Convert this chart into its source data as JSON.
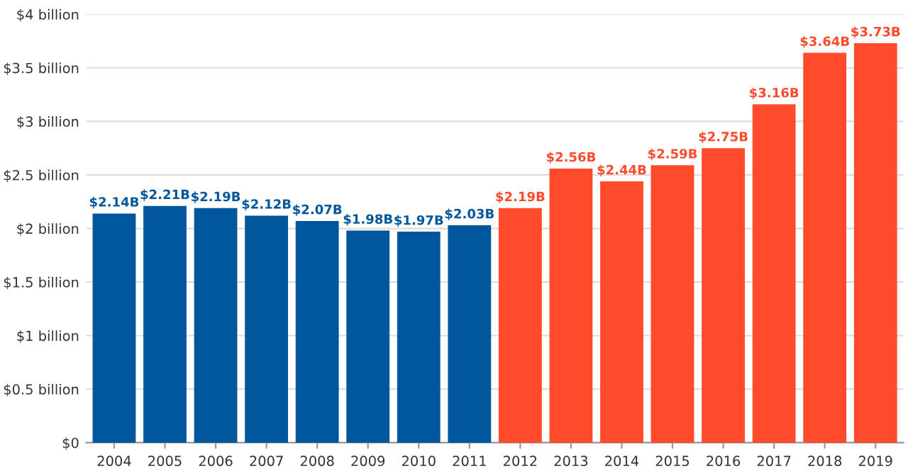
{
  "chart_data": {
    "type": "bar",
    "categories": [
      "2004",
      "2005",
      "2006",
      "2007",
      "2008",
      "2009",
      "2010",
      "2011",
      "2012",
      "2013",
      "2014",
      "2015",
      "2016",
      "2017",
      "2018",
      "2019"
    ],
    "values": [
      2.14,
      2.21,
      2.19,
      2.12,
      2.07,
      1.98,
      1.97,
      2.03,
      2.19,
      2.56,
      2.44,
      2.59,
      2.75,
      3.16,
      3.64,
      3.73
    ],
    "colors": [
      "#00579c",
      "#00579c",
      "#00579c",
      "#00579c",
      "#00579c",
      "#00579c",
      "#00579c",
      "#00579c",
      "#ff4a2b",
      "#ff4a2b",
      "#ff4a2b",
      "#ff4a2b",
      "#ff4a2b",
      "#ff4a2b",
      "#ff4a2b",
      "#ff4a2b"
    ],
    "value_labels": [
      "$2.14B",
      "$2.21B",
      "$2.19B",
      "$2.12B",
      "$2.07B",
      "$1.98B",
      "$1.97B",
      "$2.03B",
      "$2.19B",
      "$2.56B",
      "$2.44B",
      "$2.59B",
      "$2.75B",
      "$3.16B",
      "$3.64B",
      "$3.73B"
    ],
    "ylim": [
      0,
      4
    ],
    "yticks": [
      {
        "value": 0,
        "label": "$0"
      },
      {
        "value": 0.5,
        "label": "$0.5 billion"
      },
      {
        "value": 1,
        "label": "$1 billion"
      },
      {
        "value": 1.5,
        "label": "$1.5 billion"
      },
      {
        "value": 2,
        "label": "$2 billion"
      },
      {
        "value": 2.5,
        "label": "$2.5 billion"
      },
      {
        "value": 3,
        "label": "$3 billion"
      },
      {
        "value": 3.5,
        "label": "$3.5 billion"
      },
      {
        "value": 4,
        "label": "$4 billion"
      }
    ],
    "grid": "y"
  }
}
